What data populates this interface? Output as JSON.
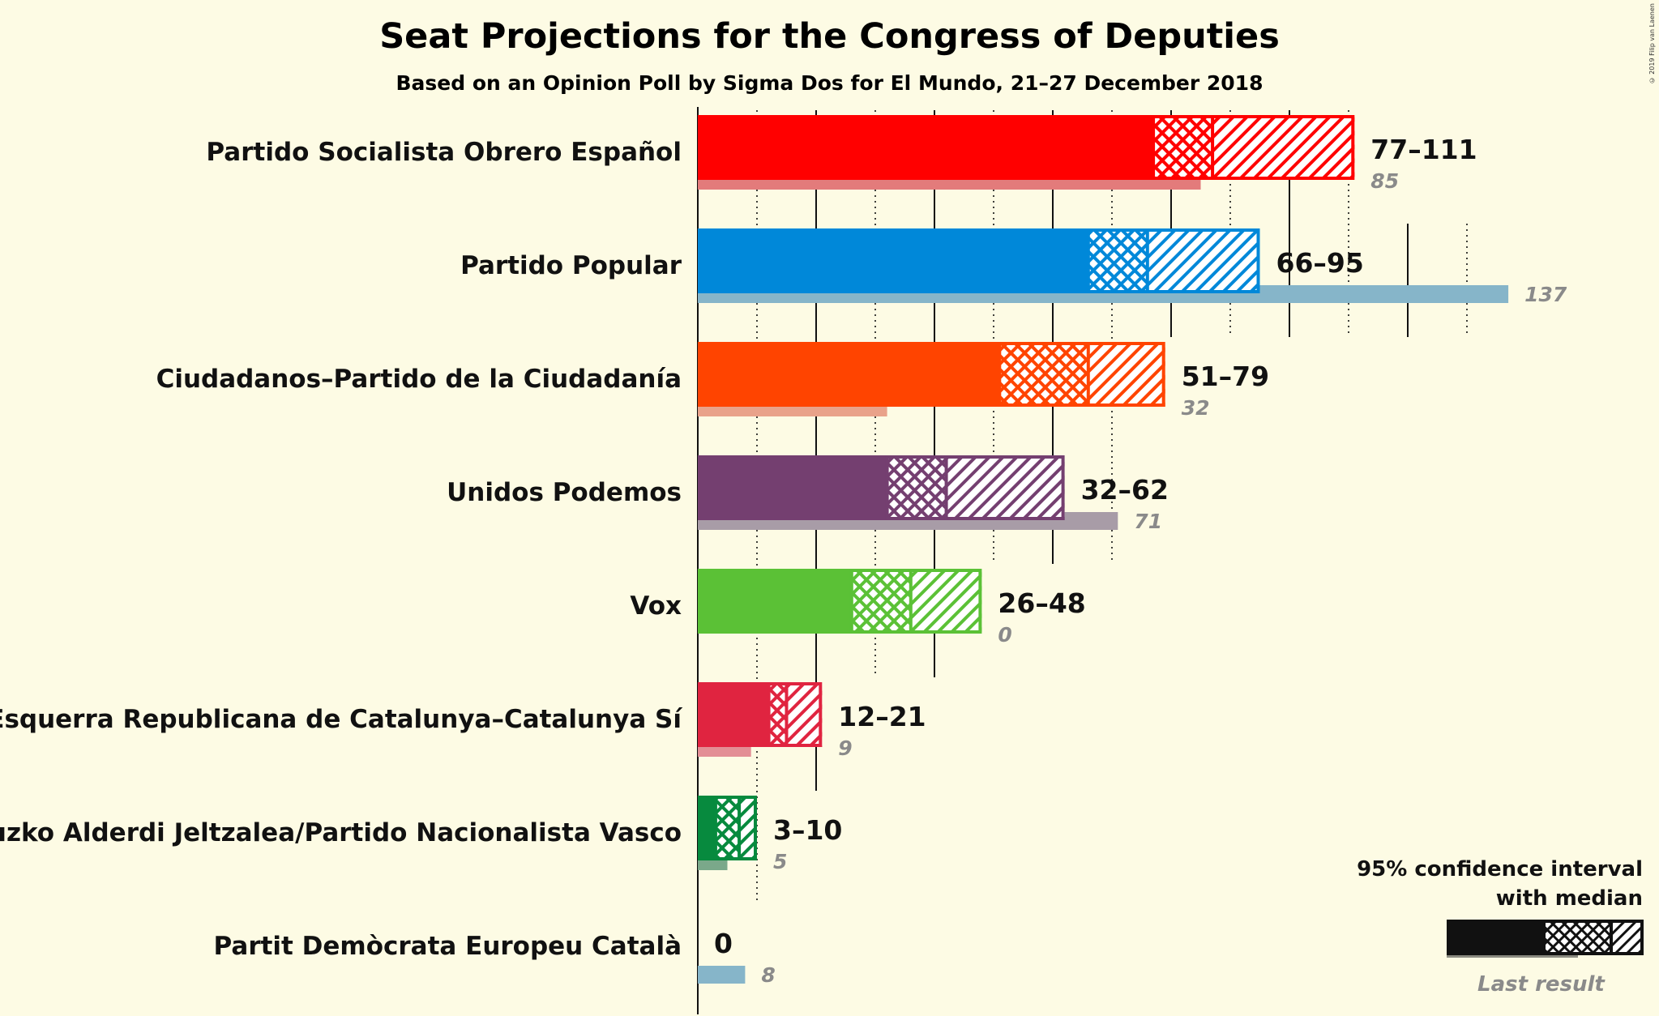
{
  "title": "Seat Projections for the Congress of Deputies",
  "subtitle": "Based on an Opinion Poll by Sigma Dos for El Mundo, 21–27 December 2018",
  "copyright": "© 2019 Filip van Laenen",
  "legend": {
    "title_line1": "95% confidence interval",
    "title_line2": "with median",
    "last_result": "Last result"
  },
  "chart_data": {
    "type": "bar",
    "orientation": "horizontal",
    "x_unit": "seats",
    "xlim": [
      0,
      141
    ],
    "gridlines": {
      "solid_every": 20,
      "dotted_every": 10
    },
    "categories": [
      "Partido Socialista Obrero Español",
      "Partido Popular",
      "Ciudadanos–Partido de la Ciudadanía",
      "Unidos Podemos",
      "Vox",
      "Esquerra Republicana de Catalunya–Catalunya Sí",
      "Euzko Alderdi Jeltzalea/Partido Nacionalista Vasco",
      "Partit Demòcrata Europeu Català"
    ],
    "series": [
      {
        "name": "95% confidence interval",
        "values": [
          {
            "low": 77,
            "median": 87,
            "high": 111,
            "range_label": "77–111"
          },
          {
            "low": 66,
            "median": 76,
            "high": 95,
            "range_label": "66–95"
          },
          {
            "low": 51,
            "median": 66,
            "high": 79,
            "range_label": "51–79"
          },
          {
            "low": 32,
            "median": 42,
            "high": 62,
            "range_label": "32–62"
          },
          {
            "low": 26,
            "median": 36,
            "high": 48,
            "range_label": "26–48"
          },
          {
            "low": 12,
            "median": 15,
            "high": 21,
            "range_label": "12–21"
          },
          {
            "low": 3,
            "median": 7,
            "high": 10,
            "range_label": "3–10"
          },
          {
            "low": 0,
            "median": 0,
            "high": 0,
            "range_label": "0"
          }
        ]
      },
      {
        "name": "Last result",
        "values": [
          85,
          137,
          32,
          71,
          0,
          9,
          5,
          8
        ]
      }
    ],
    "colors": {
      "bars": [
        "#ff0000",
        "#0088d9",
        "#ff4400",
        "#743f70",
        "#5bc136",
        "#e02440",
        "#078a3e",
        "#3288b2"
      ],
      "last": [
        "#e37b7b",
        "#86b5c9",
        "#e9a28a",
        "#a89ca7",
        "#9fd08c",
        "#e38e95",
        "#7aa88a",
        "#86b5c9"
      ]
    }
  }
}
